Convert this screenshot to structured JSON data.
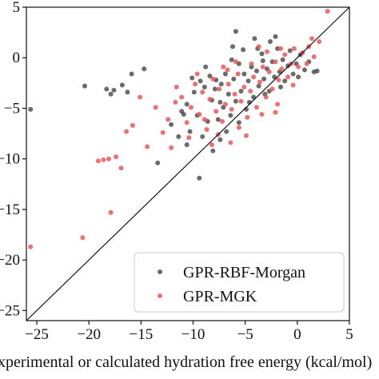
{
  "chart_data": {
    "type": "scatter",
    "title": "",
    "xlabel": "Experimental or calculated hydration free energy (kcal/mol)",
    "ylabel": "",
    "xlim": [
      -26,
      5
    ],
    "ylim": [
      -26,
      5
    ],
    "x_ticks": [
      -25,
      -20,
      -15,
      -10,
      -5,
      0,
      5
    ],
    "y_ticks": [
      -25,
      -20,
      -15,
      -10,
      -5,
      0,
      5
    ],
    "x_tick_labels": [
      "−25",
      "−20",
      "−15",
      "−10",
      "−5",
      "0",
      "5"
    ],
    "y_tick_labels": [
      "−25",
      "−20",
      "−15",
      "−10",
      "−5",
      "0",
      "5"
    ],
    "grid": false,
    "legend_position": "bottom-right",
    "reference_line": "y = x",
    "series": [
      {
        "name": "GPR-RBF-Morgan",
        "color": "#3a3a3a",
        "points": [
          [
            -25.6,
            -5.1
          ],
          [
            -20.4,
            -2.8
          ],
          [
            -18.3,
            -3.1
          ],
          [
            -17.9,
            -3.6
          ],
          [
            -17.6,
            -3.2
          ],
          [
            -16.8,
            -2.7
          ],
          [
            -16.3,
            -3.4
          ],
          [
            -15.9,
            -1.6
          ],
          [
            -14.7,
            -1.1
          ],
          [
            -13.4,
            -10.4
          ],
          [
            -11.4,
            -7.8
          ],
          [
            -10.6,
            -8.6
          ],
          [
            -10.9,
            -5.6
          ],
          [
            -10.6,
            -4.6
          ],
          [
            -10.3,
            -7.3
          ],
          [
            -9.9,
            -3.4
          ],
          [
            -9.6,
            -5.7
          ],
          [
            -9.3,
            -2.3
          ],
          [
            -9.1,
            -7.8
          ],
          [
            -8.6,
            -6.3
          ],
          [
            -8.4,
            -1.8
          ],
          [
            -8.2,
            -4.2
          ],
          [
            -7.9,
            -3.1
          ],
          [
            -7.6,
            -6.1
          ],
          [
            -7.3,
            -2.6
          ],
          [
            -7.1,
            -4.9
          ],
          [
            -6.9,
            -1.6
          ],
          [
            -6.6,
            -3.6
          ],
          [
            -6.4,
            -5.7
          ],
          [
            -6.1,
            -2.1
          ],
          [
            -5.9,
            -4.3
          ],
          [
            -5.6,
            -0.6
          ],
          [
            -5.4,
            -3.3
          ],
          [
            -5.1,
            -1.6
          ],
          [
            -4.9,
            -5.1
          ],
          [
            -4.7,
            -2.3
          ],
          [
            -4.4,
            -0.9
          ],
          [
            -4.2,
            -3.9
          ],
          [
            -3.9,
            -1.3
          ],
          [
            -3.7,
            -2.8
          ],
          [
            -3.4,
            0.4
          ],
          [
            -3.2,
            -2.1
          ],
          [
            -2.9,
            -1.1
          ],
          [
            -2.7,
            -3.3
          ],
          [
            -2.4,
            -0.4
          ],
          [
            -2.2,
            -1.9
          ],
          [
            -1.9,
            0.9
          ],
          [
            -1.7,
            -1.4
          ],
          [
            -1.4,
            -0.2
          ],
          [
            -1.2,
            -2.3
          ],
          [
            -0.9,
            -0.8
          ],
          [
            -0.7,
            0.7
          ],
          [
            -0.4,
            -1.6
          ],
          [
            -0.1,
            -0.6
          ],
          [
            0.3,
            0.3
          ],
          [
            0.7,
            -1.2
          ],
          [
            1.1,
            -0.4
          ],
          [
            1.6,
            -1.4
          ],
          [
            -5.9,
            2.6
          ],
          [
            -4.1,
            1.9
          ],
          [
            -6.2,
            1.1
          ],
          [
            -2.6,
            1.6
          ],
          [
            -9.4,
            -11.9
          ],
          [
            -8.1,
            -9.2
          ],
          [
            -7.4,
            -8.1
          ],
          [
            -6.8,
            -7.3
          ],
          [
            -12.1,
            -6.6
          ],
          [
            -11.1,
            -5.3
          ],
          [
            -5.2,
            0.8
          ],
          [
            -3.3,
            -0.3
          ],
          [
            -8.8,
            -0.9
          ],
          [
            -7.8,
            -2.2
          ],
          [
            -6.3,
            -0.2
          ],
          [
            -4.6,
            -4.4
          ],
          [
            -3.1,
            -3.6
          ],
          [
            -1.6,
            -2.9
          ],
          [
            0.1,
            -1.9
          ],
          [
            -2.1,
            2.1
          ],
          [
            -7.4,
            -4.4
          ],
          [
            -5.6,
            -6.4
          ],
          [
            1.9,
            -1.3
          ],
          [
            -3.8,
            0.9
          ],
          [
            -8.9,
            -2.9
          ],
          [
            -10.1,
            -2.0
          ]
        ]
      },
      {
        "name": "GPR-MGK",
        "color": "#e8585a",
        "points": [
          [
            -25.6,
            -18.7
          ],
          [
            -20.6,
            -17.8
          ],
          [
            -17.9,
            -15.3
          ],
          [
            -19.1,
            -10.2
          ],
          [
            -18.6,
            -10.1
          ],
          [
            -18.1,
            -10.0
          ],
          [
            -17.4,
            -9.8
          ],
          [
            -16.9,
            -10.9
          ],
          [
            -16.4,
            -7.3
          ],
          [
            -15.8,
            -6.7
          ],
          [
            -15.1,
            -3.9
          ],
          [
            -14.4,
            -8.8
          ],
          [
            -13.6,
            -4.9
          ],
          [
            -12.9,
            -7.4
          ],
          [
            -12.4,
            -6.1
          ],
          [
            -11.7,
            -4.4
          ],
          [
            -11.1,
            -3.9
          ],
          [
            -10.6,
            -6.4
          ],
          [
            -10.2,
            -4.9
          ],
          [
            -9.8,
            -2.6
          ],
          [
            -9.4,
            -5.6
          ],
          [
            -9.1,
            -3.4
          ],
          [
            -8.7,
            -7.1
          ],
          [
            -8.4,
            -4.1
          ],
          [
            -8.1,
            -2.1
          ],
          [
            -7.8,
            -5.3
          ],
          [
            -7.5,
            -3.1
          ],
          [
            -7.2,
            -6.3
          ],
          [
            -6.9,
            -4.6
          ],
          [
            -6.6,
            -2.6
          ],
          [
            -6.3,
            -5.1
          ],
          [
            -6.0,
            -3.6
          ],
          [
            -5.7,
            -1.6
          ],
          [
            -5.4,
            -4.3
          ],
          [
            -5.1,
            -2.9
          ],
          [
            -4.8,
            -5.9
          ],
          [
            -4.5,
            -3.3
          ],
          [
            -4.2,
            -1.9
          ],
          [
            -3.9,
            -4.9
          ],
          [
            -3.6,
            -2.4
          ],
          [
            -3.3,
            -0.9
          ],
          [
            -3.0,
            -3.9
          ],
          [
            -2.7,
            -1.4
          ],
          [
            -2.4,
            -3.1
          ],
          [
            -2.1,
            -0.4
          ],
          [
            -1.8,
            -2.2
          ],
          [
            -1.5,
            -1.1
          ],
          [
            -1.2,
            0.3
          ],
          [
            -0.9,
            -1.9
          ],
          [
            -0.6,
            -0.6
          ],
          [
            -0.3,
            0.9
          ],
          [
            0.1,
            -0.9
          ],
          [
            0.5,
            0.5
          ],
          [
            1.1,
            1.1
          ],
          [
            1.6,
            0.1
          ],
          [
            2.1,
            1.6
          ],
          [
            2.9,
            4.6
          ],
          [
            -6.4,
            -8.4
          ],
          [
            -5.6,
            -6.9
          ],
          [
            -8.9,
            -6.1
          ],
          [
            -10.4,
            -7.9
          ],
          [
            -12.1,
            -8.9
          ],
          [
            -4.4,
            -0.6
          ],
          [
            -2.9,
            0.6
          ],
          [
            -1.6,
            0.9
          ],
          [
            -7.1,
            -0.9
          ],
          [
            -5.9,
            -0.4
          ],
          [
            -3.4,
            -5.6
          ],
          [
            -1.9,
            -4.6
          ],
          [
            -9.6,
            -1.6
          ],
          [
            -0.4,
            -2.7
          ],
          [
            0.9,
            -0.6
          ],
          [
            -4.9,
            -7.7
          ],
          [
            -2.1,
            -5.4
          ],
          [
            -7.6,
            -7.6
          ],
          [
            -11.6,
            -2.9
          ],
          [
            -3.7,
            1.1
          ],
          [
            -6.7,
            -1.2
          ],
          [
            1.4,
            1.9
          ],
          [
            -8.2,
            -8.6
          ]
        ]
      }
    ]
  },
  "colors": {
    "axis": "#111111",
    "background": "#ffffff"
  }
}
